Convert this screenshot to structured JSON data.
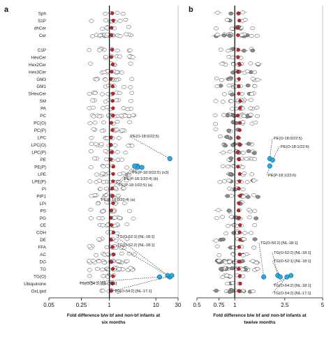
{
  "chart_data": [
    {
      "type": "scatter",
      "panel_label": "a",
      "xlabel_line1": "Fold difference b/w bf and non-bf infants at",
      "xlabel_line2": "six months",
      "xscale": "log",
      "xlim": [
        0.05,
        30
      ],
      "xticks": [
        0.05,
        0.25,
        1,
        10,
        30
      ],
      "xtick_labels": [
        "0.05",
        "0.25",
        "1",
        "10",
        "30"
      ],
      "reference_line": 1,
      "categories": [
        "Sph",
        "S1P",
        "dhCer",
        "Cer",
        "",
        "C1P",
        "HexCer",
        "Hex2Cer",
        "Hex3Cer",
        "GM3",
        "GM1",
        "SHexCer",
        "SM",
        "PA",
        "PC",
        "PC(O)",
        "PC(P)",
        "LPC",
        "LPC(O)",
        "LPC(P)",
        "PE",
        "PE(P)",
        "LPE",
        "LPE(P)",
        "PI",
        "PIP1",
        "LPI",
        "PS",
        "PG",
        "CE",
        "COH",
        "DE",
        "FFA",
        "AC",
        "DG",
        "TG",
        "TG(O)",
        "Ubiquinone",
        "OxLipid"
      ],
      "annotations": [
        {
          "text": "PE(O-18:0/22:5)",
          "category": "PE",
          "x": 20
        },
        {
          "text": "PE(P-18:0/22:5) (n3)",
          "category": "PE(P)",
          "x": 5
        },
        {
          "text": "PE(P-18:1/20:4) (b)",
          "category": "PE(P)",
          "x": 4
        },
        {
          "text": "PE(P-18:1/22:5) (a)",
          "category": "PE(P)",
          "x": 4
        },
        {
          "text": "PE(P-19:0/20:4) (a)",
          "category": "PE(P)",
          "x": 3.5
        },
        {
          "text": "TG(O-52:1) [NL-18:1]",
          "category": "TG(O)",
          "x": 20
        },
        {
          "text": "TG(O-52:2) [NL-18:1]",
          "category": "TG(O)",
          "x": 18
        },
        {
          "text": "TG(O-54:3) [NL-18:1]",
          "category": "TG(O)",
          "x": 12
        },
        {
          "text": "TG(O-54:2) [NL-17:1]",
          "category": "TG(O)",
          "x": 22
        }
      ],
      "series": [
        {
          "name": "",
          "color": "#ffffff",
          "values": []
        },
        {
          "name": "",
          "color": "#c0232a",
          "values": []
        },
        {
          "name": "",
          "color": "#29a9e1",
          "values": []
        }
      ]
    },
    {
      "type": "scatter",
      "panel_label": "b",
      "xlabel_line1": "Fold difference b/w bf and non-bf infants at",
      "xlabel_line2": "twelve months",
      "xscale": "log",
      "xlim": [
        0.5,
        5
      ],
      "xticks": [
        0.5,
        0.75,
        1,
        2.5,
        5
      ],
      "xtick_labels": [
        "0.5",
        "0.75",
        "1",
        "2.5",
        "5"
      ],
      "reference_line": 1,
      "annotations": [
        {
          "text": "PE(O-18:0/22:5)",
          "category": "PE",
          "x": 1.9
        },
        {
          "text": "PE(O-18:1/22:6)",
          "category": "PE",
          "x": 2.0
        },
        {
          "text": "PE(P-18:1/22:6)",
          "category": "PE(P)",
          "x": 1.9
        },
        {
          "text": "TG(O-50:2) [NL-18:1]",
          "category": "TG(O)",
          "x": 1.7
        },
        {
          "text": "TG(O-52:2) [NL-18:1]",
          "category": "TG(O)",
          "x": 2.2
        },
        {
          "text": "TG(O-52:1) [NL-18:1]",
          "category": "TG(O)",
          "x": 2.3
        },
        {
          "text": "TG(O-54:2) [NL-18:1]",
          "category": "TG(O)",
          "x": 2.8
        },
        {
          "text": "TG(O-54:2) [NL-17:1]",
          "category": "TG(O)",
          "x": 2.6
        }
      ]
    }
  ]
}
